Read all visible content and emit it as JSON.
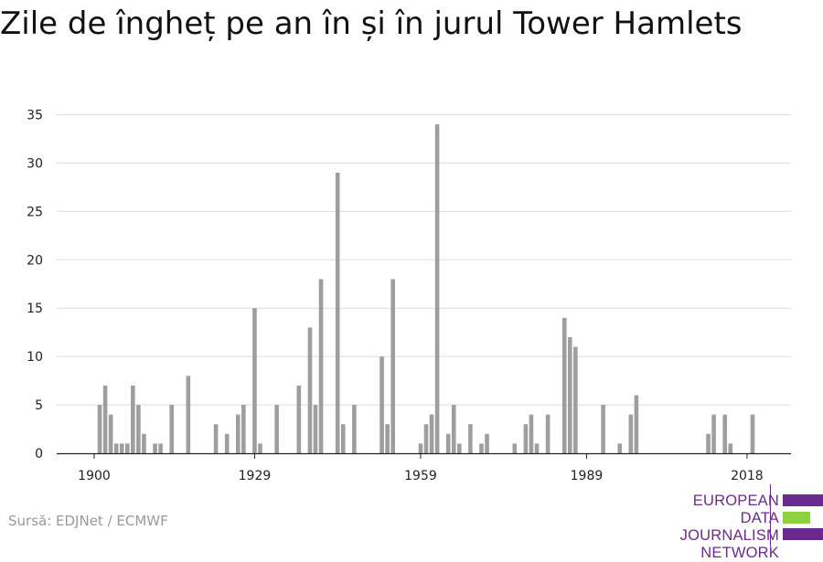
{
  "header": {
    "title": "Zile de îngheț pe an în și în jurul Tower Hamlets"
  },
  "footer": {
    "source": "Sursă: EDJNet / ECMWF",
    "logo_lines": [
      "EUROPEAN",
      "DATA JOURNALISM",
      "NETWORK"
    ]
  },
  "colors": {
    "bar": "#9e9e9e",
    "grid": "#dddddd",
    "axis": "#222222",
    "logo_purple": "#6b2a8f",
    "logo_green": "#8fd13f"
  },
  "chart_data": {
    "type": "bar",
    "title": "Zile de îngheț pe an în și în jurul Tower Hamlets",
    "xlabel": "",
    "ylabel": "",
    "ylim": [
      0,
      35
    ],
    "yticks": [
      0,
      5,
      10,
      15,
      20,
      25,
      30,
      35
    ],
    "xticks": [
      1900,
      1929,
      1959,
      1989,
      2018
    ],
    "grid": true,
    "x": [
      1900,
      1901,
      1902,
      1903,
      1904,
      1905,
      1906,
      1907,
      1908,
      1909,
      1910,
      1911,
      1912,
      1913,
      1914,
      1915,
      1916,
      1917,
      1918,
      1919,
      1920,
      1921,
      1922,
      1923,
      1924,
      1925,
      1926,
      1927,
      1928,
      1929,
      1930,
      1931,
      1932,
      1933,
      1934,
      1935,
      1936,
      1937,
      1938,
      1939,
      1940,
      1941,
      1942,
      1943,
      1944,
      1945,
      1946,
      1947,
      1948,
      1949,
      1950,
      1951,
      1952,
      1953,
      1954,
      1955,
      1956,
      1957,
      1958,
      1959,
      1960,
      1961,
      1962,
      1963,
      1964,
      1965,
      1966,
      1967,
      1968,
      1969,
      1970,
      1971,
      1972,
      1973,
      1974,
      1975,
      1976,
      1977,
      1978,
      1979,
      1980,
      1981,
      1982,
      1983,
      1984,
      1985,
      1986,
      1987,
      1988,
      1989,
      1990,
      1991,
      1992,
      1993,
      1994,
      1995,
      1996,
      1997,
      1998,
      1999,
      2000,
      2001,
      2002,
      2003,
      2004,
      2005,
      2006,
      2007,
      2008,
      2009,
      2010,
      2011,
      2012,
      2013,
      2014,
      2015,
      2016,
      2017,
      2018,
      2019,
      2020
    ],
    "values": [
      0,
      5,
      7,
      4,
      1,
      1,
      1,
      7,
      5,
      2,
      0,
      1,
      1,
      0,
      5,
      0,
      0,
      8,
      0,
      0,
      0,
      0,
      3,
      0,
      2,
      0,
      4,
      5,
      0,
      15,
      1,
      0,
      0,
      5,
      0,
      0,
      0,
      7,
      0,
      13,
      5,
      18,
      0,
      0,
      29,
      3,
      0,
      5,
      0,
      0,
      0,
      0,
      10,
      3,
      18,
      0,
      0,
      0,
      0,
      1,
      3,
      4,
      34,
      0,
      2,
      5,
      1,
      0,
      3,
      0,
      1,
      2,
      0,
      0,
      0,
      0,
      1,
      0,
      3,
      4,
      1,
      0,
      4,
      0,
      0,
      14,
      12,
      11,
      0,
      0,
      0,
      0,
      5,
      0,
      0,
      1,
      0,
      4,
      6,
      0,
      0,
      0,
      0,
      0,
      0,
      0,
      0,
      0,
      0,
      0,
      0,
      2,
      4,
      0,
      4,
      1,
      0,
      0,
      0,
      4,
      0
    ]
  }
}
